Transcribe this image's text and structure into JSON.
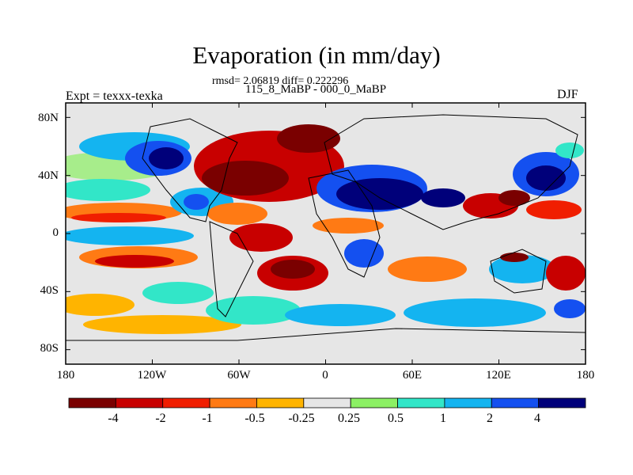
{
  "title": "Evaporation (in mm/day)",
  "stats": "rmsd= 2.06819 diff= 0.222296",
  "subtitle": "115_8_MaBP - 000_0_MaBP",
  "experiment": "Expt = texxx-texka",
  "season": "DJF",
  "axes": {
    "lon_range": [
      -180,
      180
    ],
    "lat_range": [
      -90,
      90
    ],
    "y_ticks": [
      {
        "value": 80,
        "label": "80N"
      },
      {
        "value": 40,
        "label": "40N"
      },
      {
        "value": 0,
        "label": "0"
      },
      {
        "value": -40,
        "label": "40S"
      },
      {
        "value": -80,
        "label": "80S"
      }
    ],
    "x_ticks": [
      {
        "value": -180,
        "label": "180"
      },
      {
        "value": -120,
        "label": "120W"
      },
      {
        "value": -60,
        "label": "60W"
      },
      {
        "value": 0,
        "label": "0"
      },
      {
        "value": 60,
        "label": "60E"
      },
      {
        "value": 120,
        "label": "120E"
      },
      {
        "value": 180,
        "label": "180"
      }
    ]
  },
  "colorbar": {
    "colors": [
      "#7a0000",
      "#c80000",
      "#f01e00",
      "#ff7a14",
      "#ffb400",
      "#e6e6e6",
      "#8cf064",
      "#32e6c8",
      "#14b4f0",
      "#1450f0",
      "#00007a"
    ],
    "labels": [
      "-4",
      "-2",
      "-1",
      "-0.5",
      "-0.25",
      "0.25",
      "0.5",
      "1",
      "2",
      "4"
    ]
  },
  "palette": {
    "background": "#e6e6e6",
    "strong_negative": "#7a0000",
    "negative": "#c80000",
    "weak_negative": "#ff7a14",
    "weak_positive": "#32e6c8",
    "positive": "#14b4f0",
    "strong_positive": "#00007a"
  }
}
